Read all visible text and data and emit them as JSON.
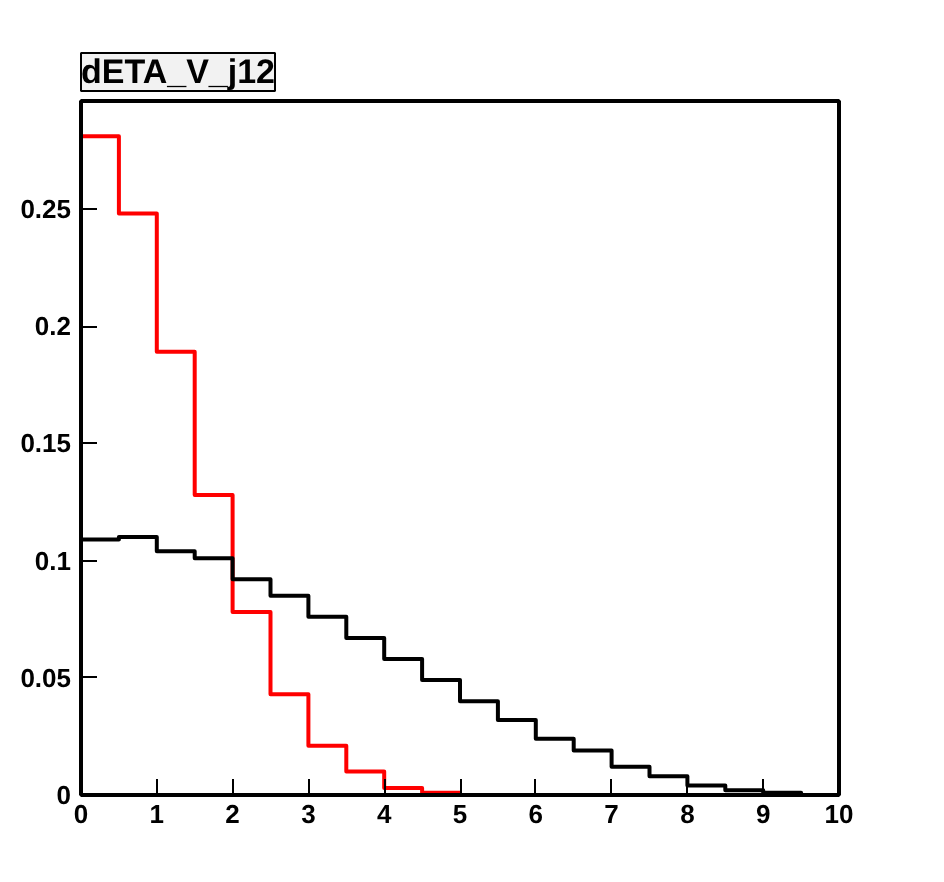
{
  "chart_data": {
    "type": "histogram",
    "title": "dETA_V_j12",
    "bins": [
      0,
      0.5,
      1,
      1.5,
      2,
      2.5,
      3,
      3.5,
      4,
      4.5,
      5,
      5.5,
      6,
      6.5,
      7,
      7.5,
      8,
      8.5,
      9,
      9.5,
      10
    ],
    "series": [
      {
        "color": "#ff0000",
        "values": [
          0.281,
          0.248,
          0.189,
          0.128,
          0.078,
          0.043,
          0.021,
          0.01,
          0.003,
          0.001,
          0,
          0,
          0,
          0,
          0,
          0,
          0,
          0,
          0,
          0
        ]
      },
      {
        "color": "#000000",
        "values": [
          0.109,
          0.11,
          0.104,
          0.101,
          0.092,
          0.085,
          0.076,
          0.067,
          0.058,
          0.049,
          0.04,
          0.032,
          0.024,
          0.019,
          0.012,
          0.008,
          0.004,
          0.002,
          0.001,
          0
        ]
      }
    ],
    "xlim": [
      0,
      10
    ],
    "ylim": [
      0,
      0.296
    ],
    "xticks": [
      0,
      1,
      2,
      3,
      4,
      5,
      6,
      7,
      8,
      9,
      10
    ],
    "yticks": [
      0,
      0.05,
      {
        "value": 0.1,
        "label": "0.1"
      },
      0.15,
      {
        "value": 0.2,
        "label": "0.2"
      },
      0.25
    ],
    "grid": false
  }
}
